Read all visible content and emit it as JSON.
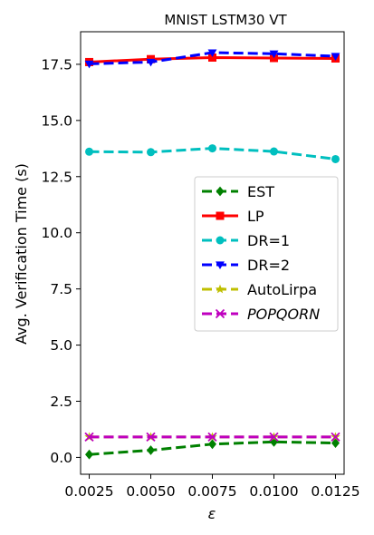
{
  "chart_data": {
    "type": "line",
    "title": "MNIST LSTM30 VT",
    "xlabel": "ε",
    "ylabel": "Avg. Verification Time (s)",
    "x": [
      0.0025,
      0.005,
      0.0075,
      0.01,
      0.0125
    ],
    "x_tick_labels": [
      "0.0025",
      "0.0050",
      "0.0075",
      "0.0100",
      "0.0125"
    ],
    "y_ticks": [
      0.0,
      2.5,
      5.0,
      7.5,
      10.0,
      12.5,
      15.0,
      17.5
    ],
    "y_tick_labels": [
      "0.0",
      "2.5",
      "5.0",
      "7.5",
      "10.0",
      "12.5",
      "15.0",
      "17.5"
    ],
    "xlim": [
      0.00215,
      0.01285
    ],
    "ylim": [
      -0.75,
      18.95
    ],
    "grid": false,
    "legend_position": "center-right",
    "series": [
      {
        "name": "EST",
        "color": "#008000",
        "marker": "diamond",
        "linestyle": "dashed",
        "values": [
          0.13,
          0.32,
          0.59,
          0.69,
          0.64
        ]
      },
      {
        "name": "LP",
        "color": "#ff0000",
        "marker": "square",
        "linestyle": "solid",
        "values": [
          17.6,
          17.73,
          17.8,
          17.78,
          17.76
        ]
      },
      {
        "name": "DR=1",
        "color": "#00bfbf",
        "marker": "circle",
        "linestyle": "dashed",
        "values": [
          13.61,
          13.59,
          13.76,
          13.62,
          13.28
        ]
      },
      {
        "name": "DR=2",
        "color": "#0000ff",
        "marker": "triangle-down",
        "linestyle": "dashed",
        "values": [
          17.52,
          17.6,
          18.02,
          17.97,
          17.86
        ]
      },
      {
        "name": "AutoLirpa",
        "color": "#bfbf00",
        "marker": "star",
        "linestyle": "dashed",
        "values": [
          0.91,
          0.91,
          0.91,
          0.91,
          0.91
        ]
      },
      {
        "name": "POPQORN",
        "color": "#bf00bf",
        "marker": "x",
        "linestyle": "dashed",
        "italic": true,
        "values": [
          0.91,
          0.91,
          0.91,
          0.91,
          0.91
        ]
      }
    ]
  }
}
